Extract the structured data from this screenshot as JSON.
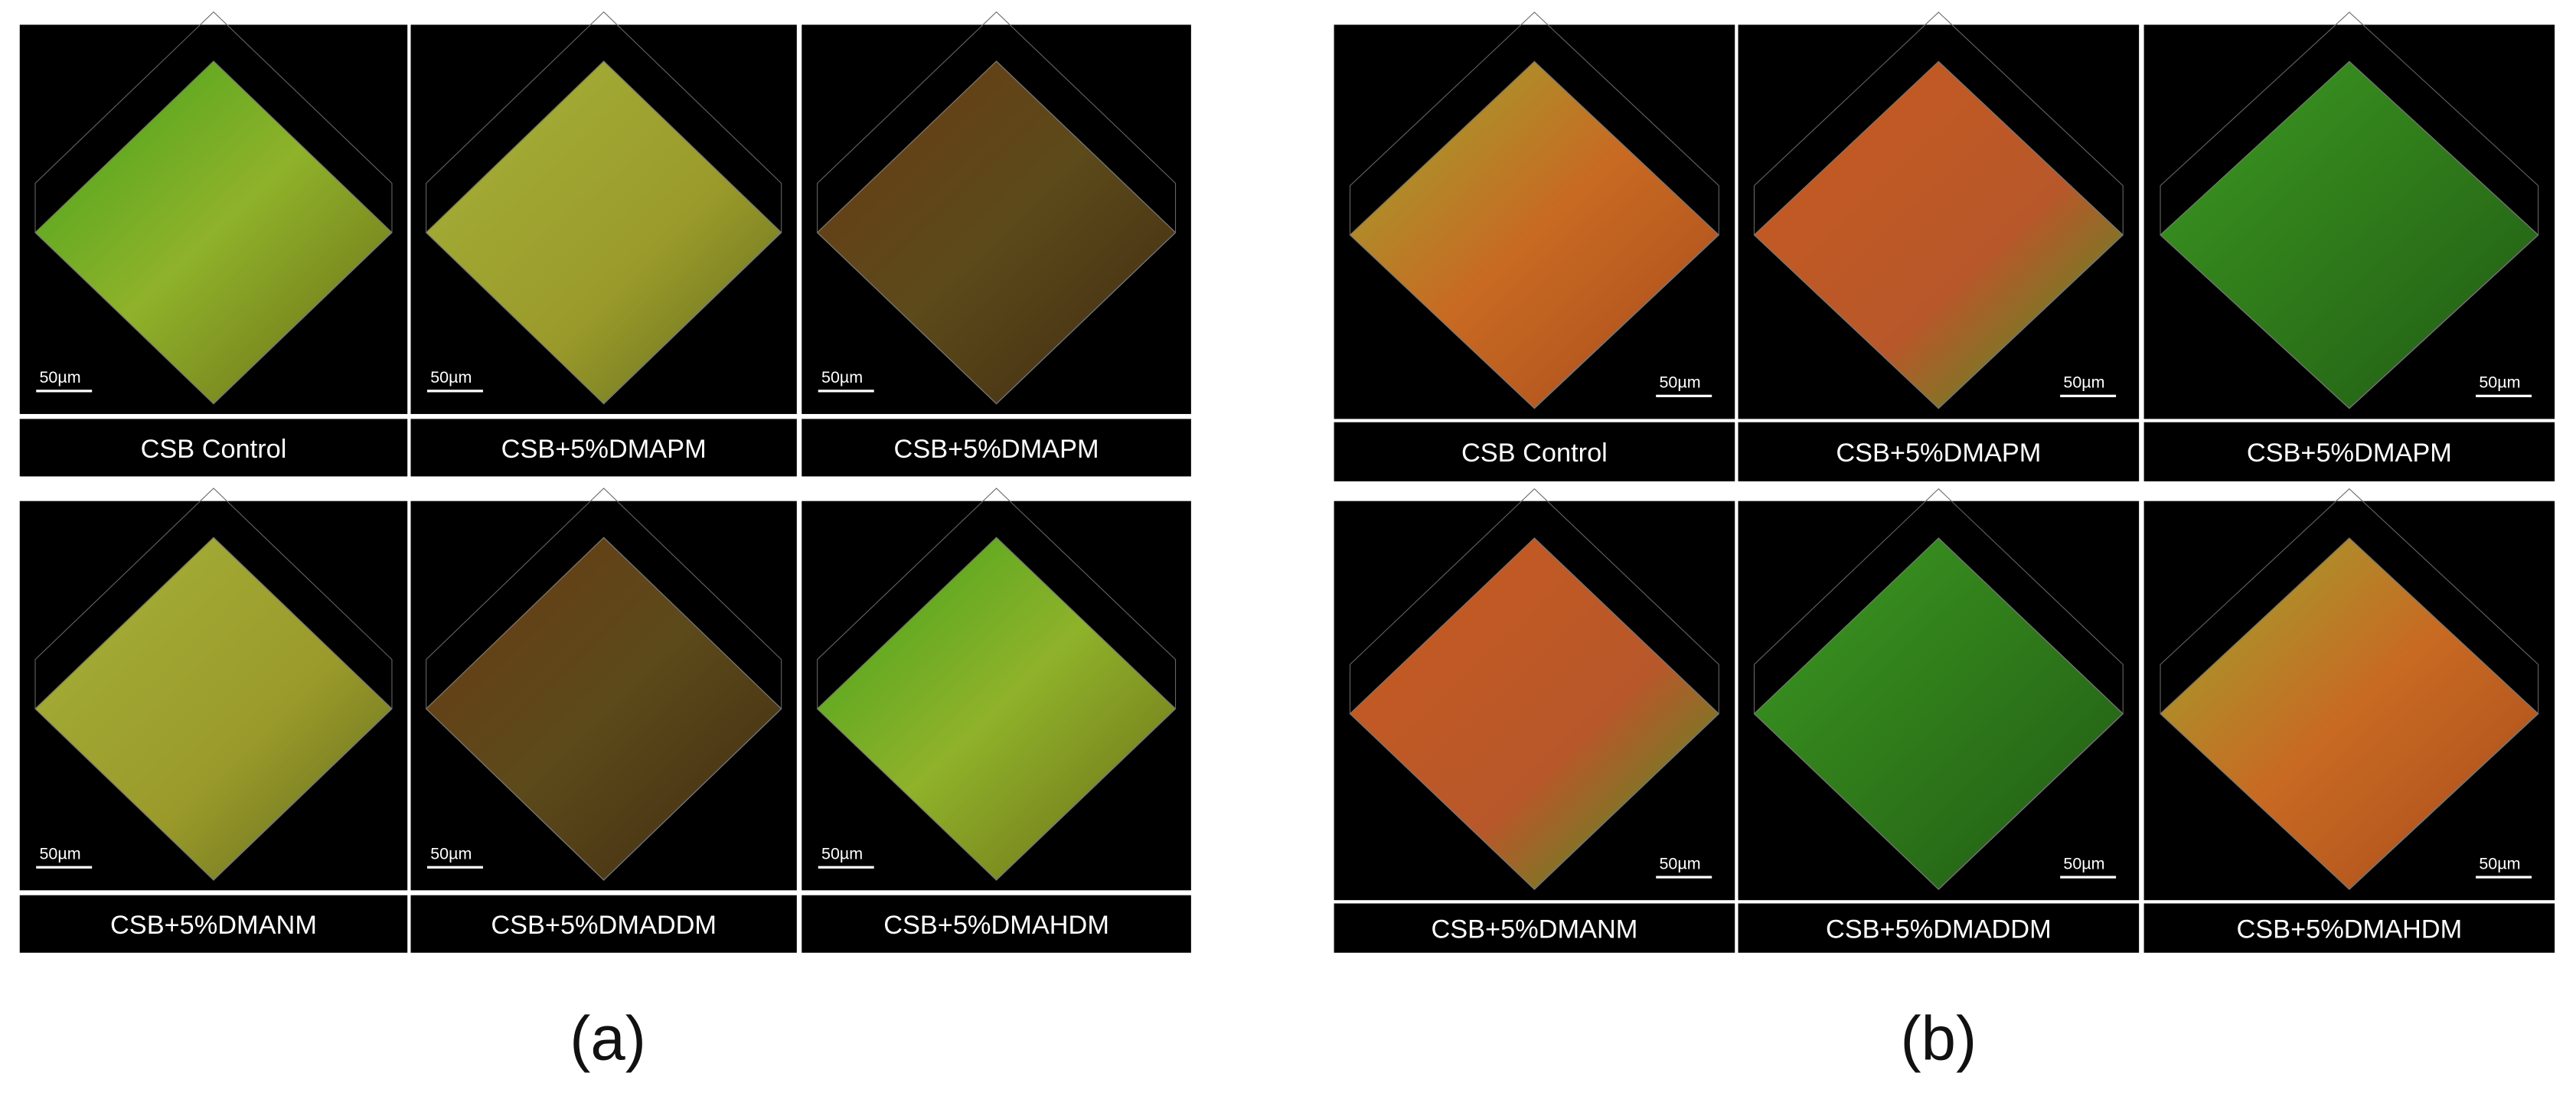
{
  "panels": [
    {
      "label": "(a)",
      "images": [
        {
          "caption": "CSB Control",
          "scale": "50µm"
        },
        {
          "caption": "CSB+5%DMAPM",
          "scale": "50µm"
        },
        {
          "caption": "CSB+5%DMAPM",
          "scale": "50µm"
        },
        {
          "caption": "CSB+5%DMANM",
          "scale": "50µm"
        },
        {
          "caption": "CSB+5%DMADDM",
          "scale": "50µm"
        },
        {
          "caption": "CSB+5%DMAHDM",
          "scale": "50µm"
        }
      ]
    },
    {
      "label": "(b)",
      "images": [
        {
          "caption": "CSB Control",
          "scale": "50µm"
        },
        {
          "caption": "CSB+5%DMAPM",
          "scale": "50µm"
        },
        {
          "caption": "CSB+5%DMAPM",
          "scale": "50µm"
        },
        {
          "caption": "CSB+5%DMANM",
          "scale": "50µm"
        },
        {
          "caption": "CSB+5%DMADDM",
          "scale": "50µm"
        },
        {
          "caption": "CSB+5%DMAHDM",
          "scale": "50µm"
        }
      ]
    }
  ]
}
